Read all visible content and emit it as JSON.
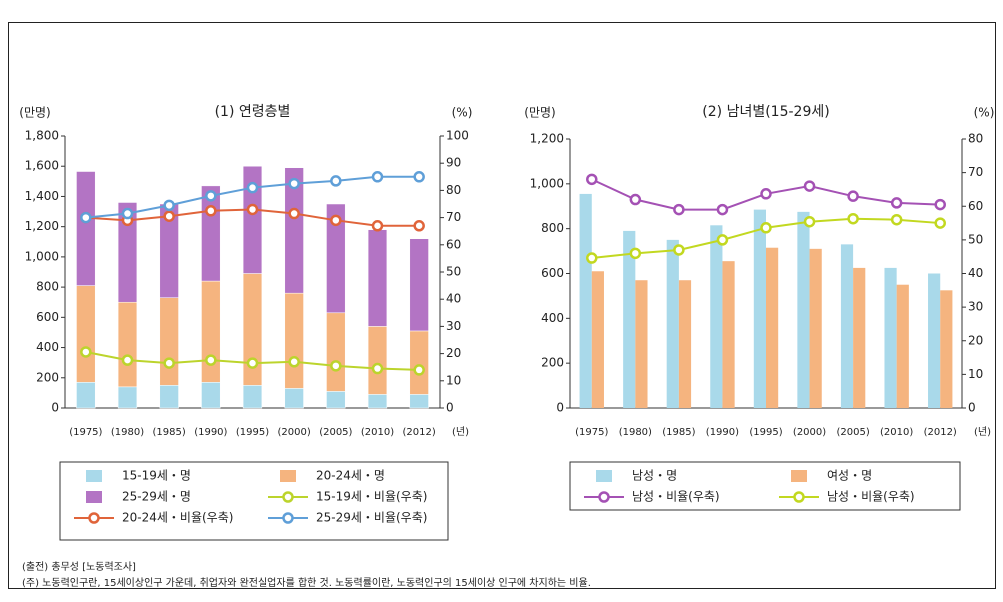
{
  "chart_data": [
    {
      "type": "combo",
      "title": "(1) 연령층별",
      "y_label": "(만명)",
      "y2_label": "(%)",
      "x_label": "(년)",
      "stacked": true,
      "categories": [
        "(1975)",
        "(1980)",
        "(1985)",
        "(1990)",
        "(1995)",
        "(2000)",
        "(2005)",
        "(2010)",
        "(2012)"
      ],
      "ylim": [
        0,
        1800
      ],
      "yticks": [
        0,
        200,
        400,
        600,
        800,
        {
          "value": 1000,
          "label": "1,000"
        },
        {
          "value": 1200,
          "label": "1,200"
        },
        {
          "value": 1400,
          "label": "1,400"
        },
        {
          "value": 1600,
          "label": "1,600"
        },
        {
          "value": 1800,
          "label": "1,800"
        }
      ],
      "y2lim": [
        0,
        100
      ],
      "y2ticks": [
        0,
        10,
        20,
        30,
        40,
        50,
        60,
        70,
        80,
        90,
        100
      ],
      "series": [
        {
          "name": "15-19세・명",
          "color": "#a9d9ea",
          "values": [
            170,
            140,
            150,
            170,
            150,
            130,
            110,
            90,
            90
          ]
        },
        {
          "name": "20-24세・명",
          "color": "#f5b47f",
          "values": [
            640,
            560,
            580,
            670,
            740,
            630,
            520,
            450,
            420
          ]
        },
        {
          "name": "25-29세・명",
          "color": "#b374c4",
          "values": [
            755,
            660,
            620,
            630,
            710,
            830,
            720,
            640,
            610
          ]
        },
        {
          "name": "15-19세・비율(우축)",
          "color": "#bcd42c",
          "axis": "y2",
          "values": [
            20.6,
            17.6,
            16.5,
            17.6,
            16.5,
            17,
            15.5,
            14.5,
            14
          ]
        },
        {
          "name": "20-24세・비율(우축)",
          "color": "#e0643a",
          "axis": "y2",
          "values": [
            70,
            69,
            70.5,
            72.5,
            73,
            71.5,
            69,
            67,
            67
          ]
        },
        {
          "name": "25-29세・비율(우축)",
          "color": "#5f9fd8",
          "axis": "y2",
          "values": [
            70,
            71.5,
            74.5,
            78,
            81,
            82.5,
            83.5,
            85,
            85
          ]
        }
      ]
    },
    {
      "type": "combo",
      "title": "(2) 남녀별(15-29세)",
      "y_label": "(만명)",
      "y2_label": "(%)",
      "x_label": "(년)",
      "stacked": false,
      "categories": [
        "(1975)",
        "(1980)",
        "(1985)",
        "(1990)",
        "(1995)",
        "(2000)",
        "(2005)",
        "(2010)",
        "(2012)"
      ],
      "ylim": [
        0,
        1200
      ],
      "yticks": [
        0,
        200,
        400,
        600,
        800,
        {
          "value": 1000,
          "label": "1,000"
        },
        {
          "value": 1200,
          "label": "1,200"
        }
      ],
      "y2lim": [
        0,
        80
      ],
      "y2ticks": [
        0,
        10,
        20,
        30,
        40,
        50,
        60,
        70,
        80
      ],
      "series": [
        {
          "name": "남성・명",
          "color": "#a9d9ea",
          "values": [
            955,
            790,
            750,
            815,
            885,
            875,
            730,
            625,
            600
          ]
        },
        {
          "name": "여성・명",
          "color": "#f5b47f",
          "values": [
            610,
            570,
            570,
            655,
            715,
            710,
            625,
            550,
            525
          ]
        },
        {
          "name": "남성・비율(우축)",
          "color": "#a451b4",
          "axis": "y2",
          "values": [
            68,
            62,
            59,
            59,
            63.7,
            66,
            63,
            61,
            60.5
          ]
        },
        {
          "name": "남성・비율(우축)",
          "color": "#c2d820",
          "axis": "y2",
          "values": [
            44.6,
            46,
            47,
            50,
            53.6,
            55.4,
            56.3,
            56,
            55
          ]
        }
      ]
    }
  ],
  "source": "(출전) 총무성 [노동력조사]",
  "note": "(주) 노동력인구란, 15세이상인구 가운데, 취업자와 완전실업자를 합한 것. 노동력률이란, 노동력인구의 15세이상 인구에 차지하는 비율."
}
